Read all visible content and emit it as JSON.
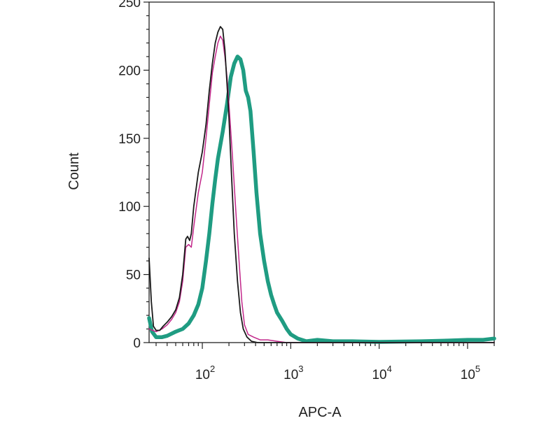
{
  "chart_data": {
    "type": "line",
    "title": "",
    "xlabel": "APC-A",
    "ylabel": "Count",
    "x_scale": "log",
    "xlim": [
      25,
      200000
    ],
    "ylim": [
      0,
      250
    ],
    "x_ticks": [
      {
        "value": 100,
        "base": "10",
        "exponent": "2"
      },
      {
        "value": 1000,
        "base": "10",
        "exponent": "3"
      },
      {
        "value": 10000,
        "base": "10",
        "exponent": "4"
      },
      {
        "value": 100000,
        "base": "10",
        "exponent": "5"
      }
    ],
    "y_ticks": [
      {
        "value": 0,
        "label": "0"
      },
      {
        "value": 50,
        "label": "50"
      },
      {
        "value": 100,
        "label": "100"
      },
      {
        "value": 150,
        "label": "150"
      },
      {
        "value": 200,
        "label": "200"
      },
      {
        "value": 250,
        "label": "250"
      }
    ],
    "grid": false,
    "legend": "none",
    "series": [
      {
        "color": "#1a1a1a",
        "points": [
          [
            25,
            62
          ],
          [
            26.5,
            30
          ],
          [
            28,
            12
          ],
          [
            30,
            9
          ],
          [
            33,
            9
          ],
          [
            36,
            12
          ],
          [
            40,
            15
          ],
          [
            45,
            19
          ],
          [
            50,
            24
          ],
          [
            55,
            33
          ],
          [
            60,
            50
          ],
          [
            65,
            76
          ],
          [
            68,
            78
          ],
          [
            72,
            75
          ],
          [
            75,
            80
          ],
          [
            80,
            100
          ],
          [
            90,
            125
          ],
          [
            100,
            140
          ],
          [
            110,
            160
          ],
          [
            120,
            185
          ],
          [
            130,
            205
          ],
          [
            140,
            220
          ],
          [
            150,
            228
          ],
          [
            160,
            232
          ],
          [
            170,
            230
          ],
          [
            180,
            215
          ],
          [
            190,
            190
          ],
          [
            200,
            165
          ],
          [
            215,
            120
          ],
          [
            230,
            80
          ],
          [
            250,
            45
          ],
          [
            270,
            22
          ],
          [
            290,
            10
          ],
          [
            320,
            4
          ],
          [
            360,
            1
          ],
          [
            420,
            0
          ],
          [
            200000,
            0
          ]
        ]
      },
      {
        "color": "#c2278a",
        "points": [
          [
            25,
            10
          ],
          [
            30,
            8
          ],
          [
            35,
            10
          ],
          [
            40,
            13
          ],
          [
            45,
            17
          ],
          [
            50,
            22
          ],
          [
            55,
            30
          ],
          [
            60,
            45
          ],
          [
            65,
            70
          ],
          [
            70,
            72
          ],
          [
            75,
            70
          ],
          [
            80,
            85
          ],
          [
            90,
            110
          ],
          [
            100,
            125
          ],
          [
            110,
            150
          ],
          [
            120,
            175
          ],
          [
            130,
            198
          ],
          [
            140,
            210
          ],
          [
            150,
            220
          ],
          [
            160,
            225
          ],
          [
            170,
            222
          ],
          [
            180,
            210
          ],
          [
            190,
            195
          ],
          [
            200,
            175
          ],
          [
            220,
            135
          ],
          [
            240,
            95
          ],
          [
            260,
            60
          ],
          [
            280,
            30
          ],
          [
            300,
            13
          ],
          [
            330,
            6
          ],
          [
            380,
            4
          ],
          [
            450,
            2
          ],
          [
            550,
            2
          ],
          [
            700,
            1
          ],
          [
            900,
            0
          ],
          [
            200000,
            0
          ]
        ]
      },
      {
        "color": "#1f9c82",
        "points": [
          [
            25,
            18
          ],
          [
            27,
            8
          ],
          [
            30,
            4
          ],
          [
            35,
            4
          ],
          [
            40,
            5
          ],
          [
            50,
            8
          ],
          [
            60,
            10
          ],
          [
            70,
            14
          ],
          [
            80,
            20
          ],
          [
            90,
            28
          ],
          [
            100,
            40
          ],
          [
            110,
            60
          ],
          [
            120,
            80
          ],
          [
            130,
            102
          ],
          [
            140,
            120
          ],
          [
            150,
            135
          ],
          [
            170,
            155
          ],
          [
            190,
            175
          ],
          [
            210,
            195
          ],
          [
            230,
            205
          ],
          [
            250,
            210
          ],
          [
            270,
            208
          ],
          [
            290,
            200
          ],
          [
            310,
            185
          ],
          [
            330,
            180
          ],
          [
            350,
            170
          ],
          [
            380,
            140
          ],
          [
            410,
            110
          ],
          [
            450,
            80
          ],
          [
            500,
            60
          ],
          [
            550,
            45
          ],
          [
            600,
            35
          ],
          [
            650,
            28
          ],
          [
            700,
            22
          ],
          [
            800,
            16
          ],
          [
            900,
            10
          ],
          [
            1000,
            6
          ],
          [
            1200,
            3
          ],
          [
            1500,
            1
          ],
          [
            2000,
            2
          ],
          [
            3000,
            1
          ],
          [
            5000,
            1
          ],
          [
            10000,
            0.5
          ],
          [
            30000,
            1
          ],
          [
            60000,
            1.5
          ],
          [
            100000,
            2
          ],
          [
            150000,
            2
          ],
          [
            200000,
            3
          ]
        ]
      }
    ]
  }
}
